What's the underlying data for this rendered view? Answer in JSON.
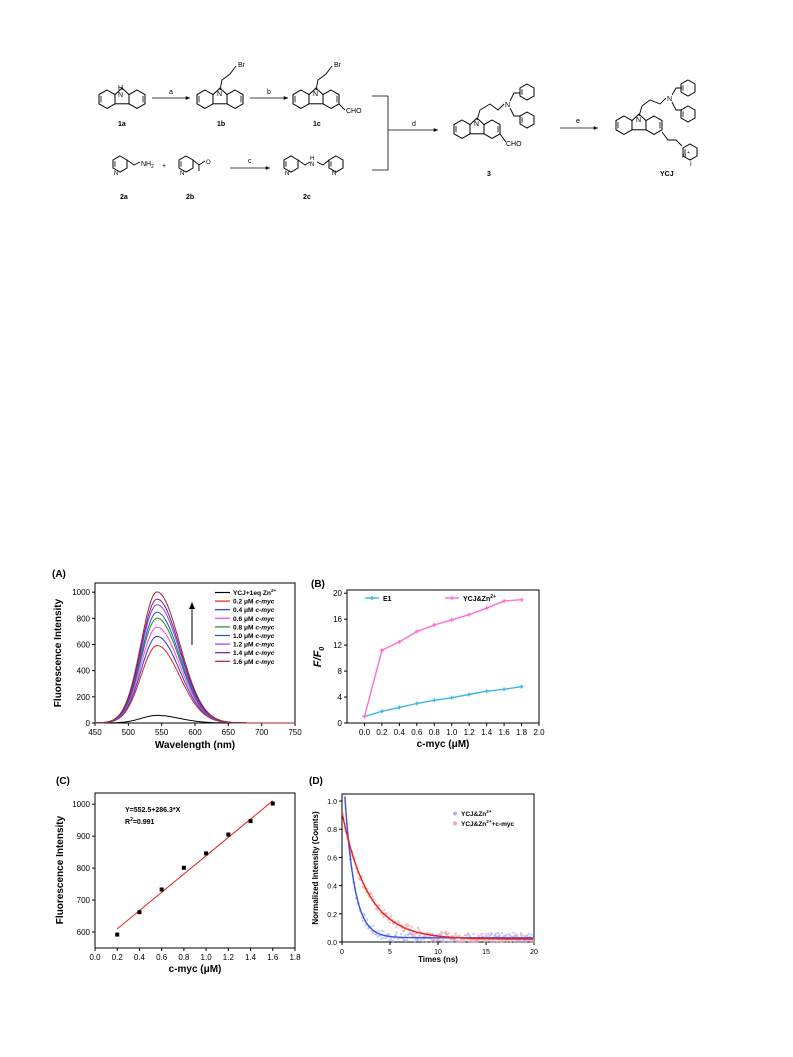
{
  "scheme": {
    "compounds": {
      "c1a": "1a",
      "c1b": "1b",
      "c1c": "1c",
      "c2a": "2a",
      "c2b": "2b",
      "c2c": "2c",
      "c3": "3",
      "ycj": "YCJ"
    },
    "steps": {
      "a": "a",
      "b": "b",
      "c": "c",
      "d": "d",
      "e": "e"
    },
    "atoms": {
      "h": "H",
      "n": "N",
      "br": "Br",
      "cho": "CHO",
      "nh2": "NH",
      "nh2_sub": "2",
      "plus": "+",
      "iodide": "I"
    }
  },
  "panelA": {
    "label": "(A)",
    "arrow_direction": "up",
    "chart_data": {
      "type": "line",
      "xlabel": "Wavelength (nm)",
      "ylabel": "Fluorescence Intensity",
      "xlim": [
        450,
        750
      ],
      "ylim": [
        0,
        1000
      ],
      "xticks": [
        450,
        500,
        550,
        600,
        650,
        700,
        750
      ],
      "yticks": [
        0,
        200,
        400,
        600,
        800,
        1000
      ],
      "peak_x": 543,
      "series": [
        {
          "name": "YCJ+1eq Zn",
          "name_sup": "2+",
          "name_italic": "",
          "peak": 58,
          "color": "#000000"
        },
        {
          "name": "0.2 μM ",
          "name_italic": "c-myc",
          "peak": 592,
          "color": "#e32020"
        },
        {
          "name": "0.4 μM ",
          "name_italic": "c-myc",
          "peak": 662,
          "color": "#2a35d9"
        },
        {
          "name": "0.6 μM ",
          "name_italic": "c-myc",
          "peak": 733,
          "color": "#ff3df0"
        },
        {
          "name": "0.8 μM ",
          "name_italic": "c-myc",
          "peak": 801,
          "color": "#1f8a2c"
        },
        {
          "name": "1.0 μM ",
          "name_italic": "c-myc",
          "peak": 846,
          "color": "#2457b4"
        },
        {
          "name": "1.2 μM ",
          "name_italic": "c-myc",
          "peak": 905,
          "color": "#8a41ff"
        },
        {
          "name": "1.4 μM ",
          "name_italic": "c-myc",
          "peak": 947,
          "color": "#6a1f8c"
        },
        {
          "name": "1.6 μM ",
          "name_italic": "c-myc",
          "peak": 1002,
          "color": "#a32424"
        }
      ]
    }
  },
  "panelB": {
    "label": "(B)",
    "chart_data": {
      "type": "line",
      "xlabel": "c-myc (μM)",
      "ylabel": "F/F",
      "ylabel_sub": "0",
      "xlim": [
        -0.2,
        2.0
      ],
      "ylim": [
        0,
        20.5
      ],
      "xticks": [
        0.0,
        0.2,
        0.4,
        0.6,
        0.8,
        1.0,
        1.2,
        1.4,
        1.6,
        1.8,
        2.0
      ],
      "yticks": [
        0,
        4,
        8,
        12,
        16,
        20
      ],
      "x": [
        0.0,
        0.2,
        0.4,
        0.6,
        0.8,
        1.0,
        1.2,
        1.4,
        1.6,
        1.8
      ],
      "series": [
        {
          "name": "E1",
          "name_sup": "",
          "color": "#3cb6e8",
          "values": [
            1.0,
            1.8,
            2.4,
            3.0,
            3.5,
            3.9,
            4.4,
            4.9,
            5.2,
            5.6
          ]
        },
        {
          "name": "YCJ&Zn",
          "name_sup": "2+",
          "color": "#ff6ed2",
          "values": [
            1.0,
            11.2,
            12.5,
            14.1,
            15.1,
            15.9,
            16.7,
            17.7,
            18.8,
            19.0
          ]
        }
      ]
    }
  },
  "panelC": {
    "label": "(C)",
    "chart_data": {
      "type": "scatter",
      "xlabel": "c-myc (μM)",
      "ylabel": "Fluorescence Intensity",
      "xlim": [
        0.0,
        1.8
      ],
      "ylim": [
        550,
        1035
      ],
      "xticks": [
        0.0,
        0.2,
        0.4,
        0.6,
        0.8,
        1.0,
        1.2,
        1.4,
        1.6,
        1.8
      ],
      "yticks": [
        600,
        700,
        800,
        900,
        1000
      ],
      "x": [
        0.2,
        0.4,
        0.6,
        0.8,
        1.0,
        1.2,
        1.4,
        1.6
      ],
      "values": [
        592,
        662,
        733,
        801,
        846,
        905,
        947,
        1002
      ],
      "fit": {
        "intercept": 552.5,
        "slope": 286.3,
        "x_from": 0.2,
        "x_to": 1.6,
        "color": "#e32020"
      },
      "equation": "Y=552.5+286.3*X",
      "r2_prefix": "R",
      "r2_sup": "2",
      "r2_value": "=0.991"
    }
  },
  "panelD": {
    "label": "(D)",
    "chart_data": {
      "type": "scatter",
      "xlabel": "Times (ns)",
      "ylabel": "Normalized Intensity (Counts)",
      "xlim": [
        0,
        20
      ],
      "ylim": [
        0,
        1.05
      ],
      "xticks": [
        0,
        5,
        10,
        15,
        20
      ],
      "yticks": [
        0.0,
        0.2,
        0.4,
        0.6,
        0.8,
        1.0
      ],
      "series": [
        {
          "name": "YCJ&Zn",
          "name_sup": "2+",
          "name_suffix": "",
          "point_color": "#aab3f2",
          "fit_color": "#3c4fe0",
          "amplitude": 1.0,
          "tau_ns": 1.0,
          "baseline": 0.03,
          "x_start": 0.3
        },
        {
          "name": "YCJ&Zn",
          "name_sup": "2+",
          "name_suffix": "+c-myc",
          "point_color": "#f5a3a3",
          "fit_color": "#e32020",
          "amplitude": 0.9,
          "tau_ns": 2.7,
          "baseline": 0.02,
          "x_start": 0.0
        }
      ]
    }
  }
}
